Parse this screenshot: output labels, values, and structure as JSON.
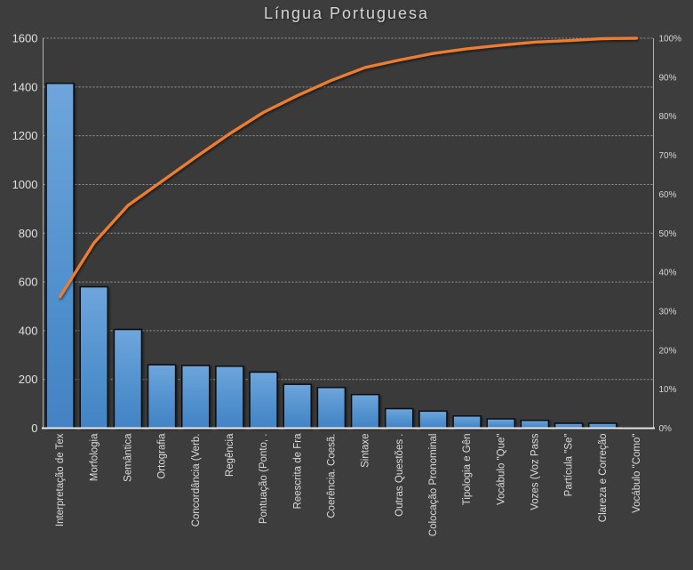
{
  "chart_data": {
    "type": "bar",
    "subtype": "pareto",
    "title": "Língua Portuguesa",
    "legend_position": "none",
    "grid": true,
    "categories": [
      "Interpretação de Tex",
      "Morfologia",
      "Semântica",
      "Ortografia",
      "Concordância (Verb.",
      "Regência",
      "Pontuação (Ponto, .",
      "Reescrita de Fra",
      "Coerência. Coesã.",
      "Sintaxe",
      "Outras Questões .",
      "Colocação Pronominal",
      "Tipologia e Gên",
      "Vocábulo \"Que\"",
      "Vozes (Voz Pass",
      "Partícula \"Se\"",
      "Clareza e Correção",
      "Vocábulo \"Como\""
    ],
    "series": [
      {
        "name": "frequency-bars",
        "type": "bar",
        "axis": "left",
        "values": [
          1415,
          580,
          405,
          260,
          257,
          254,
          230,
          180,
          167,
          138,
          80,
          70,
          50,
          38,
          32,
          20,
          20,
          4
        ]
      },
      {
        "name": "cumulative-percent-line",
        "type": "line",
        "axis": "right",
        "values": [
          33.7,
          47.5,
          57.1,
          63.3,
          69.5,
          75.5,
          81.0,
          85.3,
          89.2,
          92.5,
          94.4,
          96.1,
          97.3,
          98.2,
          99.0,
          99.4,
          99.9,
          100.0
        ]
      }
    ],
    "left_axis": {
      "min": 0,
      "max": 1600,
      "step": 200,
      "ticks": [
        "0",
        "200",
        "400",
        "600",
        "800",
        "1000",
        "1200",
        "1400",
        "1600"
      ]
    },
    "right_axis": {
      "min": 0,
      "max": 100,
      "step": 10,
      "ticks": [
        "0%",
        "10%",
        "20%",
        "30%",
        "40%",
        "50%",
        "60%",
        "70%",
        "80%",
        "90%",
        "100%"
      ]
    },
    "colors": {
      "background": "#3D3D3D",
      "plot_background": "#3A3A3A",
      "bar_top": "#6FA5DC",
      "bar_mid": "#5292CE",
      "bar_bottom": "#4382C4",
      "bar_border": "#0A0A0A",
      "line": "#ED7D31",
      "gridline": "#A8A8A8",
      "axis_line": "#B3B3B3",
      "baseline": "#EAEAEA",
      "text": "#DCDCDC"
    }
  }
}
